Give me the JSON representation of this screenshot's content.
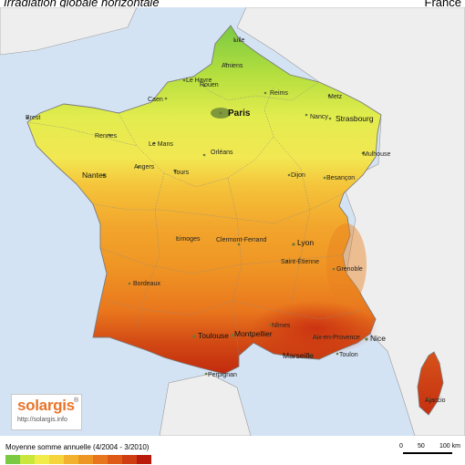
{
  "header": {
    "title": "Irradiation globale horizontale",
    "country": "France"
  },
  "map": {
    "cities": [
      {
        "id": "lille",
        "name": "Lille",
        "size": "small"
      },
      {
        "id": "amiens",
        "name": "Amiens",
        "size": "small"
      },
      {
        "id": "le-havre",
        "name": "Le Havre",
        "size": "small"
      },
      {
        "id": "rouen",
        "name": "Rouen",
        "size": "small"
      },
      {
        "id": "caen",
        "name": "Caen",
        "size": "small"
      },
      {
        "id": "reims",
        "name": "Reims",
        "size": "small"
      },
      {
        "id": "metz",
        "name": "Metz",
        "size": "small"
      },
      {
        "id": "brest",
        "name": "Brest",
        "size": "small"
      },
      {
        "id": "paris",
        "name": "Paris",
        "size": "big"
      },
      {
        "id": "nancy",
        "name": "Nancy",
        "size": "small"
      },
      {
        "id": "strasbourg",
        "name": "Strasbourg",
        "size": "mid"
      },
      {
        "id": "rennes",
        "name": "Rennes",
        "size": "small"
      },
      {
        "id": "le-mans",
        "name": "Le Mans",
        "size": "small"
      },
      {
        "id": "mulhouse",
        "name": "Mulhouse",
        "size": "small"
      },
      {
        "id": "orleans",
        "name": "Orléans",
        "size": "small"
      },
      {
        "id": "angers",
        "name": "Angers",
        "size": "small"
      },
      {
        "id": "tours",
        "name": "Tours",
        "size": "small"
      },
      {
        "id": "nantes",
        "name": "Nantes",
        "size": "mid"
      },
      {
        "id": "dijon",
        "name": "Dijon",
        "size": "small"
      },
      {
        "id": "besancon",
        "name": "Besançon",
        "size": "small"
      },
      {
        "id": "limoges",
        "name": "Limoges",
        "size": "small"
      },
      {
        "id": "clermont",
        "name": "Clermont-Ferrand",
        "size": "small"
      },
      {
        "id": "lyon",
        "name": "Lyon",
        "size": "mid"
      },
      {
        "id": "saint-etienne",
        "name": "Saint-Étienne",
        "size": "small"
      },
      {
        "id": "grenoble",
        "name": "Grenoble",
        "size": "small"
      },
      {
        "id": "bordeaux",
        "name": "Bordeaux",
        "size": "small"
      },
      {
        "id": "nimes",
        "name": "Nîmes",
        "size": "small"
      },
      {
        "id": "toulouse",
        "name": "Toulouse",
        "size": "mid"
      },
      {
        "id": "montpellier",
        "name": "Montpellier",
        "size": "mid"
      },
      {
        "id": "aix",
        "name": "Aix-en-Provence",
        "size": "small"
      },
      {
        "id": "nice",
        "name": "Nice",
        "size": "mid"
      },
      {
        "id": "marseille",
        "name": "Marseille",
        "size": "mid"
      },
      {
        "id": "toulon",
        "name": "Toulon",
        "size": "small"
      },
      {
        "id": "perpignan",
        "name": "Perpignan",
        "size": "small"
      },
      {
        "id": "ajaccio",
        "name": "Ajaccio",
        "size": "small"
      }
    ]
  },
  "logo": {
    "text": "solargis",
    "sup": "®",
    "url": "http://solargis.info"
  },
  "legend": {
    "title": "Moyenne somme annuelle (4/2004 - 3/2010)",
    "colors": [
      "#7ac943",
      "#c8e63c",
      "#f2ec4a",
      "#f5d43c",
      "#f2b12e",
      "#ee9624",
      "#e8761c",
      "#de5a16",
      "#cf3e12",
      "#b81a0c"
    ]
  },
  "scale": {
    "labels": [
      "0",
      "50",
      "100 km"
    ]
  }
}
